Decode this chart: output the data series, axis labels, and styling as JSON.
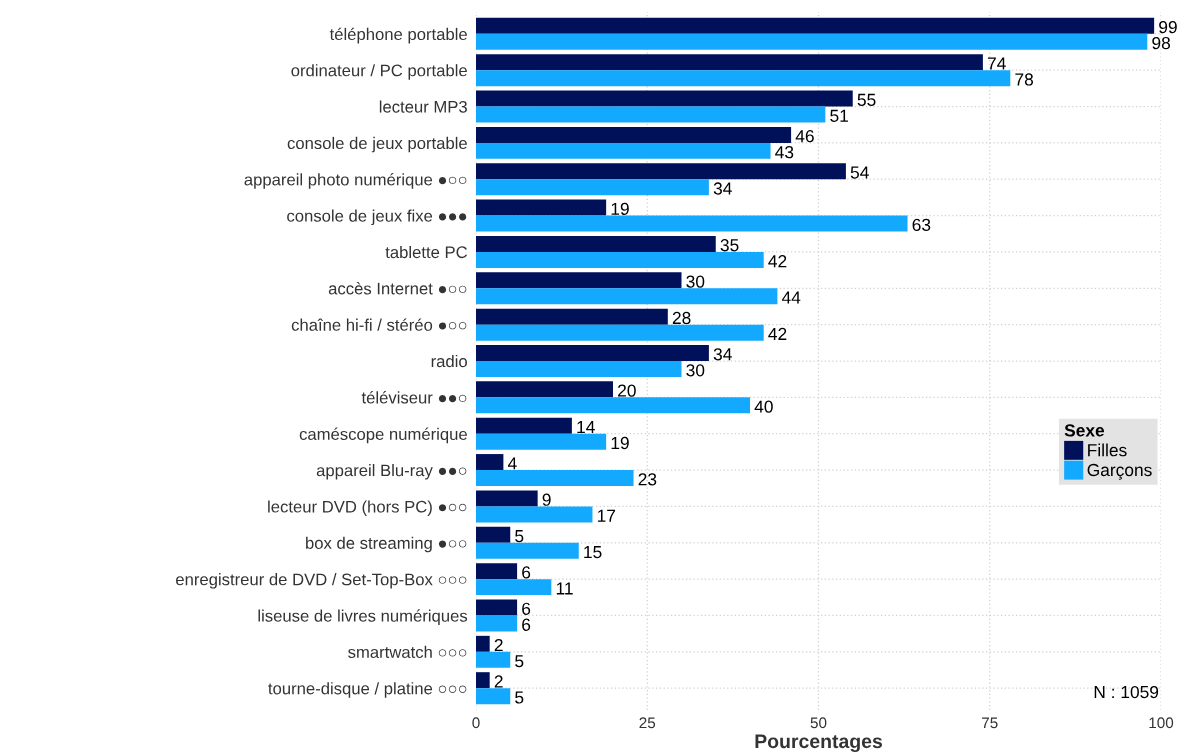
{
  "chart_data": {
    "type": "bar",
    "orientation": "horizontal",
    "categories": [
      "téléphone portable",
      "ordinateur / PC portable",
      "lecteur MP3",
      "console de jeux portable",
      "appareil photo numérique ●○○",
      "console de jeux fixe ●●●",
      "tablette PC",
      "accès Internet ●○○",
      "chaîne hi-fi / stéréo ●○○",
      "radio",
      "téléviseur ●●○",
      "caméscope numérique",
      "appareil Blu-ray ●●○",
      "lecteur DVD (hors PC) ●○○",
      "box de streaming ●○○",
      "enregistreur de DVD / Set-Top-Box ○○○",
      "liseuse de livres numériques",
      "smartwatch ○○○",
      "tourne-disque / platine ○○○"
    ],
    "series": [
      {
        "name": "Filles",
        "color": "#00115a",
        "values": [
          99,
          74,
          55,
          46,
          54,
          19,
          35,
          30,
          28,
          34,
          20,
          14,
          4,
          9,
          5,
          6,
          6,
          2,
          2
        ]
      },
      {
        "name": "Garçons",
        "color": "#12a9ff",
        "values": [
          98,
          78,
          51,
          43,
          34,
          63,
          42,
          44,
          42,
          30,
          40,
          19,
          23,
          17,
          15,
          11,
          6,
          5,
          5
        ]
      }
    ],
    "xlim": [
      0,
      100
    ],
    "xticks": [
      0,
      25,
      50,
      75,
      100
    ],
    "xlabel": "Pourcentages",
    "legend_title": "Sexe",
    "legend": "right",
    "data_labels": true,
    "grid": true,
    "annotations": [
      "N : 1059"
    ]
  }
}
